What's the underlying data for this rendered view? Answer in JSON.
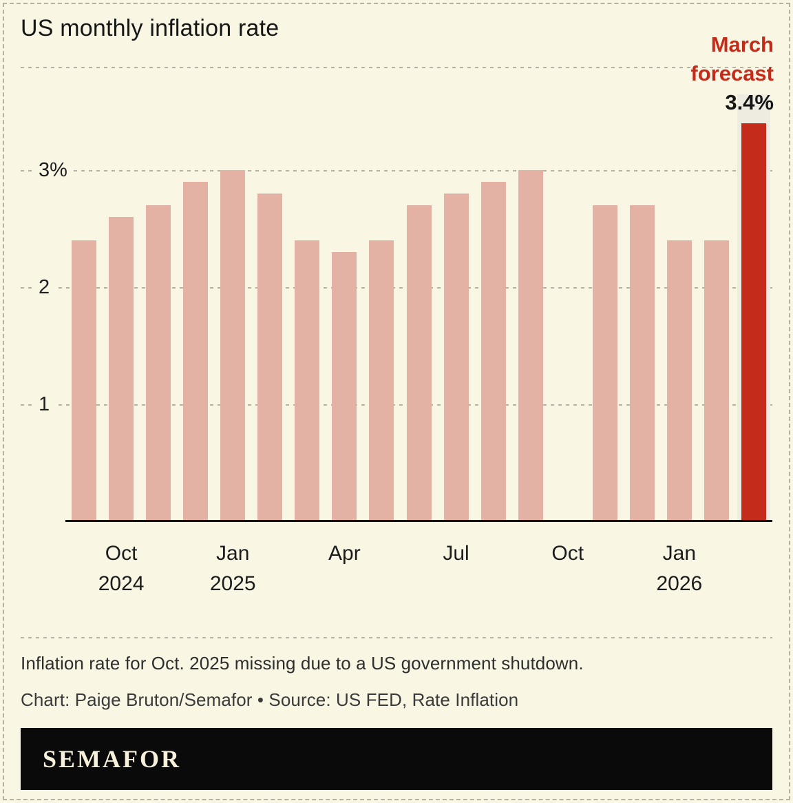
{
  "title": "US monthly inflation rate",
  "annotation": {
    "label_line1": "March",
    "label_line2": "forecast",
    "value": "3.4%"
  },
  "note": "Inflation rate for Oct. 2025 missing due to a US government shutdown.",
  "credit": "Chart: Paige Bruton/Semafor • Source: US FED, Rate Inflation",
  "logo": "SEMAFOR",
  "colors": {
    "background": "#f9f6e4",
    "bar": "#e3b2a5",
    "forecast": "#c52b1b",
    "grid": "#b5b2a3",
    "band": "#eeece1",
    "footer_bg": "#0a0a0a",
    "logo_text": "#f7f1db"
  },
  "chart_data": {
    "type": "bar",
    "title": "US monthly inflation rate",
    "unit": "percent",
    "ylim": [
      0,
      3.6
    ],
    "grid": "dashed-horizontal",
    "categories": [
      "Sep 2024",
      "Oct 2024",
      "Nov 2024",
      "Dec 2024",
      "Jan 2025",
      "Feb 2025",
      "Mar 2025",
      "Apr 2025",
      "May 2025",
      "Jun 2025",
      "Jul 2025",
      "Aug 2025",
      "Sep 2025",
      "Oct 2025",
      "Nov 2025",
      "Dec 2025",
      "Jan 2026",
      "Feb 2026",
      "Mar 2026"
    ],
    "values": [
      2.4,
      2.6,
      2.7,
      2.9,
      3.0,
      2.8,
      2.4,
      2.3,
      2.4,
      2.7,
      2.8,
      2.9,
      3.0,
      null,
      2.7,
      2.7,
      2.4,
      2.4,
      3.4
    ],
    "missing_categories": [
      "Oct 2025"
    ],
    "forecast_category": "Mar 2026",
    "forecast_value": 3.4,
    "y_ticks": [
      {
        "value": 3,
        "label": "3%"
      },
      {
        "value": 2,
        "label": "2"
      },
      {
        "value": 1,
        "label": "1"
      }
    ],
    "x_ticks": [
      {
        "index": 1,
        "line1": "Oct",
        "line2": "2024"
      },
      {
        "index": 4,
        "line1": "Jan",
        "line2": "2025"
      },
      {
        "index": 7,
        "line1": "Apr",
        "line2": ""
      },
      {
        "index": 10,
        "line1": "Jul",
        "line2": ""
      },
      {
        "index": 13,
        "line1": "Oct",
        "line2": ""
      },
      {
        "index": 16,
        "line1": "Jan",
        "line2": "2026"
      }
    ]
  }
}
